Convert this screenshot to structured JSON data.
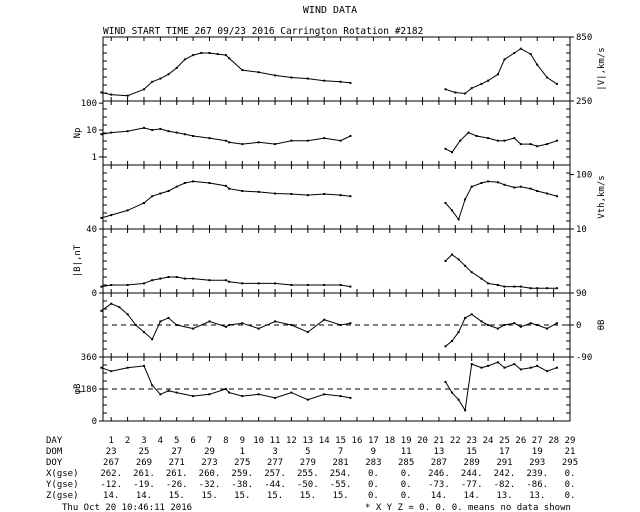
{
  "title": "WIND DATA",
  "subtitle": "WIND START TIME 267 09/23 2016 Carrington Rotation #2182",
  "footer": {
    "timestamp": "Thu Oct 20 10:46:11 2016",
    "note": "* X Y Z = 0. 0. 0. means no data shown"
  },
  "chart_data": [
    {
      "type": "scatter",
      "ylabel": "|V|,km/s",
      "label_side": "right",
      "ylim": [
        250,
        850
      ],
      "right_ticks": [
        "850",
        "250"
      ],
      "x": [
        0.4,
        1,
        2,
        3,
        3.5,
        4,
        4.5,
        5,
        5.5,
        6,
        6.5,
        7,
        7.5,
        8,
        8.2,
        9,
        10,
        11,
        12,
        13,
        14,
        15,
        15.6,
        21.4,
        22,
        22.6,
        23,
        23.6,
        24,
        24.6,
        25,
        25.6,
        26,
        26.6,
        27,
        27.6,
        28.2
      ],
      "y": [
        330,
        310,
        300,
        360,
        430,
        460,
        500,
        560,
        640,
        680,
        700,
        700,
        690,
        680,
        650,
        540,
        520,
        490,
        470,
        460,
        440,
        430,
        420,
        360,
        330,
        320,
        370,
        410,
        440,
        500,
        640,
        700,
        740,
        690,
        590,
        470,
        410
      ]
    },
    {
      "type": "scatter",
      "ylabel": "Np",
      "label_side": "left",
      "log": true,
      "ylim": [
        0.5,
        120
      ],
      "left_ticks": [
        "100",
        "10",
        "1"
      ],
      "x": [
        0.4,
        1,
        2,
        3,
        3.5,
        4,
        4.5,
        5,
        5.5,
        6,
        7,
        8,
        8.2,
        9,
        10,
        11,
        12,
        13,
        14,
        15,
        15.6,
        21.4,
        21.8,
        22.3,
        22.8,
        23.3,
        24,
        24.6,
        25,
        25.6,
        26,
        26.6,
        27,
        27.6,
        28.2
      ],
      "y": [
        7,
        8,
        9,
        12,
        10,
        11,
        9,
        8,
        7,
        6,
        5,
        4,
        3.5,
        3,
        3.5,
        3,
        4,
        4,
        5,
        4,
        6,
        2,
        1.5,
        4,
        8,
        6,
        5,
        4,
        4,
        5,
        3,
        3,
        2.5,
        3,
        4
      ]
    },
    {
      "type": "scatter",
      "ylabel": "Vth,km/s",
      "label_side": "right",
      "log": true,
      "ylim": [
        10,
        150
      ],
      "right_ticks": [
        "100",
        "10"
      ],
      "x": [
        0.4,
        1,
        2,
        3,
        3.5,
        4,
        4.5,
        5,
        5.5,
        6,
        7,
        8,
        8.2,
        9,
        10,
        11,
        12,
        13,
        14,
        15,
        15.6,
        21.4,
        21.8,
        22.2,
        22.6,
        23,
        23.6,
        24,
        24.6,
        25,
        25.6,
        26,
        26.6,
        27,
        27.6,
        28.2
      ],
      "y": [
        16,
        18,
        22,
        30,
        40,
        45,
        50,
        60,
        70,
        75,
        70,
        62,
        55,
        50,
        48,
        45,
        44,
        42,
        44,
        42,
        40,
        30,
        22,
        15,
        35,
        60,
        70,
        75,
        72,
        65,
        58,
        60,
        55,
        50,
        45,
        40
      ]
    },
    {
      "type": "line",
      "ylabel": "|B|,nT",
      "label_side": "left",
      "ylim": [
        0,
        40
      ],
      "left_ticks": [
        "40",
        "0"
      ],
      "x": [
        0.4,
        1,
        2,
        3,
        3.5,
        4,
        4.5,
        5,
        5.5,
        6,
        7,
        8,
        8.2,
        9,
        10,
        11,
        12,
        13,
        14,
        15,
        15.6,
        21.4,
        21.8,
        22.2,
        22.6,
        23,
        23.6,
        24,
        24.6,
        25,
        25.6,
        26,
        26.6,
        27,
        27.6,
        28.2
      ],
      "y": [
        4,
        5,
        5,
        6,
        8,
        9,
        10,
        10,
        9,
        9,
        8,
        8,
        7,
        6,
        6,
        6,
        5,
        5,
        5,
        5,
        4,
        20,
        24,
        21,
        17,
        13,
        9,
        6,
        5,
        4,
        4,
        4,
        3,
        3,
        3,
        3
      ]
    },
    {
      "type": "scatter",
      "ylabel": "θB",
      "label_side": "right",
      "ylim": [
        -90,
        90
      ],
      "right_ticks": [
        "90",
        "0",
        "-90"
      ],
      "x": [
        0.4,
        1,
        1.5,
        2,
        2.5,
        3,
        3.5,
        4,
        4.5,
        5,
        6,
        7,
        8,
        8.2,
        9,
        10,
        11,
        12,
        13,
        14,
        15,
        15.6,
        21.4,
        21.8,
        22.2,
        22.6,
        23,
        23.6,
        24,
        24.6,
        25,
        25.6,
        26,
        26.6,
        27,
        27.6,
        28.2
      ],
      "y": [
        40,
        60,
        50,
        30,
        0,
        -20,
        -40,
        10,
        20,
        0,
        -10,
        10,
        -5,
        0,
        5,
        -10,
        10,
        0,
        -20,
        15,
        0,
        5,
        -60,
        -45,
        -20,
        20,
        30,
        10,
        0,
        -10,
        0,
        5,
        -5,
        5,
        0,
        -10,
        5
      ]
    },
    {
      "type": "scatter",
      "ylabel": "φB",
      "label_side": "left",
      "ylim": [
        0,
        360
      ],
      "left_ticks": [
        "360",
        "180",
        "0"
      ],
      "x": [
        0.4,
        1,
        2,
        3,
        3.5,
        4,
        4.5,
        5,
        6,
        7,
        8,
        8.2,
        9,
        10,
        11,
        12,
        13,
        14,
        15,
        15.6,
        21.4,
        21.8,
        22.2,
        22.6,
        23,
        23.6,
        24,
        24.6,
        25,
        25.6,
        26,
        26.6,
        27,
        27.6,
        28.2
      ],
      "y": [
        300,
        280,
        300,
        310,
        200,
        150,
        170,
        160,
        140,
        150,
        180,
        160,
        140,
        150,
        130,
        160,
        120,
        150,
        140,
        130,
        220,
        160,
        120,
        60,
        320,
        300,
        310,
        330,
        300,
        320,
        290,
        300,
        310,
        280,
        300
      ]
    }
  ],
  "x_axis": {
    "day": {
      "label": "DAY",
      "values": [
        "1",
        "2",
        "3",
        "4",
        "5",
        "6",
        "7",
        "8",
        "9",
        "10",
        "11",
        "12",
        "13",
        "14",
        "15",
        "16",
        "17",
        "18",
        "19",
        "20",
        "21",
        "22",
        "23",
        "24",
        "25",
        "26",
        "27",
        "28",
        "29"
      ]
    },
    "rows": [
      {
        "label": "DOM",
        "values": [
          "23",
          "25",
          "27",
          "29",
          "1",
          "3",
          "5",
          "7",
          "9",
          "11",
          "13",
          "15",
          "17",
          "19",
          "21"
        ]
      },
      {
        "label": "DOY",
        "values": [
          "267",
          "269",
          "271",
          "273",
          "275",
          "277",
          "279",
          "281",
          "283",
          "285",
          "287",
          "289",
          "291",
          "293",
          "295"
        ]
      },
      {
        "label": "X(gse)",
        "values": [
          "262.",
          "261.",
          "261.",
          "260.",
          "259.",
          "257.",
          "255.",
          "254.",
          "0.",
          "0.",
          "246.",
          "244.",
          "242.",
          "239.",
          "0."
        ]
      },
      {
        "label": "Y(gse)",
        "values": [
          "-12.",
          "-19.",
          "-26.",
          "-32.",
          "-38.",
          "-44.",
          "-50.",
          "-55.",
          "0.",
          "0.",
          "-73.",
          "-77.",
          "-82.",
          "-86.",
          "0."
        ]
      },
      {
        "label": "Z(gse)",
        "values": [
          "14.",
          "14.",
          "15.",
          "15.",
          "15.",
          "15.",
          "15.",
          "15.",
          "0.",
          "0.",
          "14.",
          "14.",
          "13.",
          "13.",
          "0."
        ]
      }
    ]
  }
}
